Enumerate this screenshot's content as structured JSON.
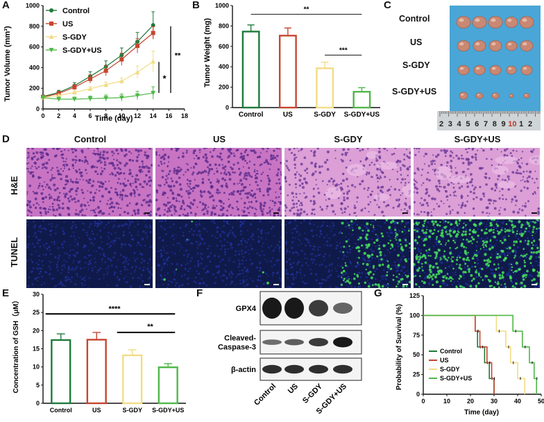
{
  "colors": {
    "control": "#1e7a3a",
    "us": "#c6452f",
    "sgdy": "#f2dc84",
    "sgdyus": "#4fb848",
    "photo_bg": "#4aa6d6",
    "he_tissue": "#c874c3",
    "tunel_bg": "#101a4a",
    "tunel_green": "#46e05a"
  },
  "panel_labels": {
    "a": "A",
    "b": "B",
    "c": "C",
    "d": "D",
    "e": "E",
    "f": "F",
    "g": "G"
  },
  "panel_a": {
    "chart_data": {
      "type": "line",
      "xlabel": "Time (day)",
      "ylabel": "Tumor Volume (mm³)",
      "x_ticks": [
        "0",
        "2",
        "4",
        "6",
        "8",
        "10",
        "12",
        "14",
        "16",
        "18"
      ],
      "y_ticks": [
        "0",
        "200",
        "400",
        "600",
        "800",
        "1000"
      ],
      "xlim": [
        0,
        18
      ],
      "ylim": [
        0,
        1000
      ],
      "x": [
        0,
        2,
        4,
        6,
        8,
        10,
        12,
        14
      ],
      "series": [
        {
          "name": "Control",
          "values": [
            120,
            160,
            225,
            315,
            410,
            520,
            650,
            810
          ],
          "errors": [
            15,
            20,
            30,
            45,
            55,
            70,
            90,
            130
          ]
        },
        {
          "name": "US",
          "values": [
            115,
            150,
            210,
            290,
            370,
            480,
            610,
            735
          ],
          "errors": [
            15,
            20,
            25,
            40,
            50,
            60,
            70,
            60
          ]
        },
        {
          "name": "S-GDY",
          "values": [
            112,
            130,
            160,
            195,
            235,
            270,
            355,
            460
          ],
          "errors": [
            10,
            12,
            15,
            20,
            25,
            30,
            60,
            100
          ]
        },
        {
          "name": "S-GDY+US",
          "values": [
            110,
            95,
            95,
            100,
            105,
            110,
            130,
            155
          ],
          "errors": [
            10,
            20,
            20,
            25,
            30,
            35,
            40,
            60
          ]
        }
      ],
      "significance": [
        {
          "label": "*"
        },
        {
          "label": "**"
        }
      ]
    }
  },
  "panel_b": {
    "chart_data": {
      "type": "bar",
      "categories": [
        "Control",
        "US",
        "S-GDY",
        "S-GDY+US"
      ],
      "values": [
        745,
        705,
        385,
        155
      ],
      "errors": [
        65,
        75,
        60,
        40
      ],
      "ylabel": "Tumor Weight (mg)",
      "y_ticks": [
        "0",
        "200",
        "400",
        "600",
        "800",
        "1000"
      ],
      "ylim": [
        0,
        1000
      ],
      "significance": [
        {
          "label": "**"
        },
        {
          "label": "***"
        }
      ]
    }
  },
  "panel_c": {
    "groups": [
      "Control",
      "US",
      "S-GDY",
      "S-GDY+US"
    ],
    "ruler_numbers": [
      "2",
      "3",
      "4",
      "5",
      "6",
      "7",
      "8",
      "9",
      "10",
      "1",
      "2"
    ]
  },
  "panel_d": {
    "columns": [
      "Control",
      "US",
      "S-GDY",
      "S-GDY+US"
    ],
    "rows": [
      "H&E",
      "TUNEL"
    ]
  },
  "panel_e": {
    "chart_data": {
      "type": "bar",
      "categories": [
        "Control",
        "US",
        "S-GDY",
        "S-GDY+US"
      ],
      "values": [
        17.4,
        17.5,
        13.2,
        9.9
      ],
      "errors": [
        1.7,
        2.0,
        1.5,
        1.0
      ],
      "ylabel": "Concentration of GSH（μM）",
      "y_ticks": [
        "0",
        "5",
        "10",
        "15",
        "20",
        "25",
        "30"
      ],
      "ylim": [
        0,
        30
      ],
      "significance": [
        {
          "label": "****"
        },
        {
          "label": "**"
        }
      ]
    }
  },
  "panel_f": {
    "proteins": [
      "GPX4",
      "Cleaved-\nCaspase-3",
      "β-actin"
    ],
    "protein_lines": [
      [
        "GPX4"
      ],
      [
        "Cleaved-",
        "Caspase-3"
      ],
      [
        "β-actin"
      ]
    ],
    "lanes": [
      "Control",
      "US",
      "S-GDY",
      "S-GDY+US"
    ],
    "band_intensity": {
      "GPX4": [
        1.0,
        1.0,
        0.75,
        0.45
      ],
      "Cleaved-Caspase-3": [
        0.4,
        0.5,
        0.75,
        1.0
      ],
      "beta-actin": [
        0.85,
        0.85,
        0.85,
        0.85
      ]
    }
  },
  "panel_g": {
    "chart_data": {
      "type": "line",
      "subtype": "survival-step",
      "xlabel": "Time (day)",
      "ylabel": "Probability of Survival (%)",
      "x_ticks": [
        "0",
        "10",
        "20",
        "30",
        "40",
        "50"
      ],
      "y_ticks": [
        "0",
        "25",
        "50",
        "75",
        "100",
        "125"
      ],
      "xlim": [
        0,
        50
      ],
      "ylim": [
        0,
        125
      ],
      "series": [
        {
          "name": "Control",
          "times": [
            0,
            22,
            23,
            26,
            28,
            30
          ],
          "values": [
            100,
            80,
            60,
            40,
            20,
            0
          ]
        },
        {
          "name": "US",
          "times": [
            0,
            22,
            24,
            27,
            29,
            30
          ],
          "values": [
            100,
            80,
            60,
            40,
            20,
            0
          ]
        },
        {
          "name": "S-GDY",
          "times": [
            0,
            31,
            35,
            37,
            40,
            43
          ],
          "values": [
            100,
            80,
            60,
            40,
            20,
            0
          ]
        },
        {
          "name": "S-GDY+US",
          "times": [
            0,
            38,
            42,
            45,
            47,
            48
          ],
          "values": [
            100,
            80,
            60,
            40,
            20,
            0
          ]
        }
      ]
    }
  }
}
